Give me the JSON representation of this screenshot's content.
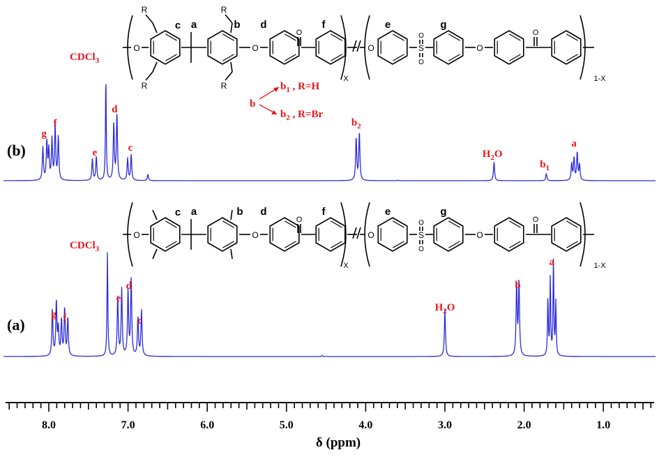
{
  "chart_data": {
    "type": "line",
    "title": "",
    "xlabel": "δ (ppm)",
    "ylabel": "",
    "xlim": [
      8.6,
      0.25
    ],
    "x_reversed": true,
    "x_ticks": [
      "8.0",
      "7.0",
      "6.0",
      "5.0",
      "4.0",
      "3.0",
      "2.0",
      "1.0"
    ],
    "grid": false,
    "line_color": "#2b2bdc",
    "label_color": "#e8141b",
    "series": [
      {
        "name": "(a)",
        "peaks": [
          {
            "label": "g",
            "ppm": 7.93,
            "height": 0.52
          },
          {
            "label": "f",
            "ppm": 7.8,
            "height": 0.46
          },
          {
            "label": "CDCl3",
            "ppm": 7.26,
            "height": 1.0
          },
          {
            "label": "e",
            "ppm": 7.1,
            "height": 0.64
          },
          {
            "label": "d",
            "ppm": 6.98,
            "height": 0.74
          },
          {
            "label": "c",
            "ppm": 6.85,
            "height": 0.44
          },
          {
            "label": "H2O",
            "ppm": 3.0,
            "height": 0.45
          },
          {
            "label": "b",
            "ppm": 2.08,
            "height": 0.72
          },
          {
            "label": "a",
            "ppm": 1.65,
            "height": 0.93
          }
        ]
      },
      {
        "name": "(b)",
        "peaks": [
          {
            "label": "g",
            "ppm": 8.05,
            "height": 0.37
          },
          {
            "label": "f",
            "ppm": 7.92,
            "height": 0.52
          },
          {
            "label": "e",
            "ppm": 7.42,
            "height": 0.23
          },
          {
            "label": "CDCl3",
            "ppm": 7.28,
            "height": 1.0
          },
          {
            "label": "d",
            "ppm": 7.16,
            "height": 0.64
          },
          {
            "label": "c",
            "ppm": 6.98,
            "height": 0.25
          },
          {
            "label": "b2",
            "ppm": 4.1,
            "height": 0.46
          },
          {
            "label": "H2O",
            "ppm": 2.38,
            "height": 0.18
          },
          {
            "label": "b1",
            "ppm": 1.72,
            "height": 0.07
          },
          {
            "label": "a",
            "ppm": 1.35,
            "height": 0.27
          }
        ]
      }
    ],
    "annotations": {
      "b_arrow": "b",
      "b1_text": "b",
      "b1_sub": "1",
      "b1_rest": " , R=H",
      "b2_text": "b",
      "b2_sub": "2",
      "b2_rest": " , R=Br"
    }
  },
  "structure": {
    "atom_O": "O",
    "atom_S": "S",
    "R_group": "R",
    "sub_x": "X",
    "sub_1x": "1-X",
    "labels": {
      "a": "a",
      "b": "b",
      "c": "c",
      "d": "d",
      "e": "e",
      "f": "f",
      "g": "g"
    }
  },
  "panel_labels": {
    "top": "(b)",
    "bottom": "(a)"
  },
  "peak_text": {
    "cdcl3_main": "CDCl",
    "cdcl3_sub": "3",
    "h2o_h": "H",
    "h2o_sub": "2",
    "h2o_o": "O"
  }
}
